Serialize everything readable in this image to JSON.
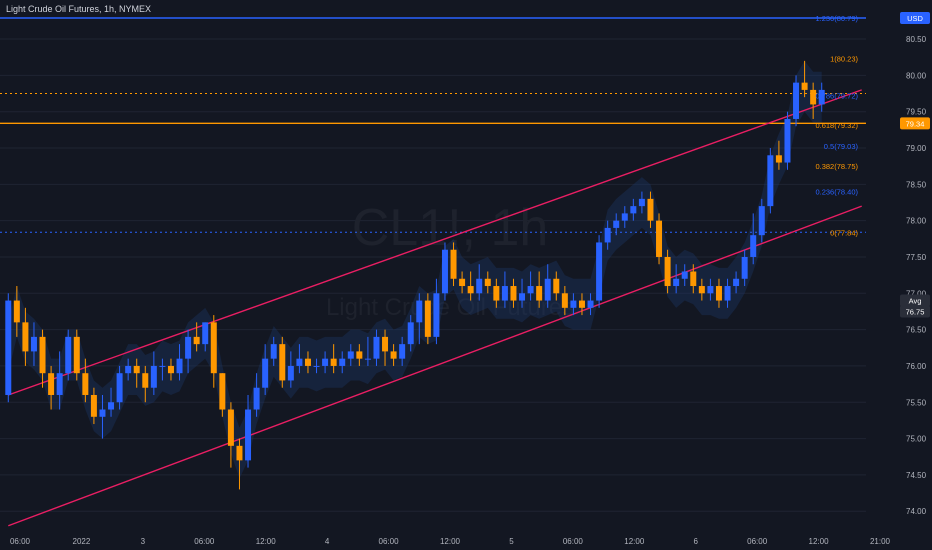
{
  "header": {
    "title": "Light Crude Oil Futures, 1h, NYMEX",
    "currency": "USD"
  },
  "watermark": {
    "ticker": "CL1!, 1h",
    "name": "Light Crude Oil Futures"
  },
  "chart_data": {
    "type": "candlestick",
    "symbol": "CL1!",
    "interval": "1h",
    "exchange": "NYMEX",
    "ylim": [
      73.7,
      80.9
    ],
    "y_ticks": [
      74.0,
      74.5,
      75.0,
      75.5,
      76.0,
      76.5,
      77.0,
      77.5,
      78.0,
      78.5,
      79.0,
      79.5,
      80.0,
      80.5
    ],
    "x_ticks": [
      "06:00",
      "2022",
      "3",
      "06:00",
      "12:00",
      "4",
      "06:00",
      "12:00",
      "5",
      "06:00",
      "12:00",
      "6",
      "06:00",
      "12:00",
      "21:00"
    ],
    "candles": [
      [
        75.6,
        76.9,
        77.0,
        75.5
      ],
      [
        76.9,
        76.6,
        77.1,
        76.4
      ],
      [
        76.6,
        76.2,
        76.8,
        76.0
      ],
      [
        76.2,
        76.4,
        76.6,
        76.0
      ],
      [
        76.4,
        75.9,
        76.5,
        75.7
      ],
      [
        75.9,
        75.6,
        76.0,
        75.4
      ],
      [
        75.6,
        75.9,
        76.2,
        75.4
      ],
      [
        75.9,
        76.4,
        76.5,
        75.8
      ],
      [
        76.4,
        75.9,
        76.5,
        75.8
      ],
      [
        75.9,
        75.6,
        76.1,
        75.5
      ],
      [
        75.6,
        75.3,
        75.7,
        75.2
      ],
      [
        75.3,
        75.4,
        75.6,
        75.0
      ],
      [
        75.4,
        75.5,
        75.7,
        75.3
      ],
      [
        75.5,
        75.9,
        76.0,
        75.4
      ],
      [
        75.9,
        76.0,
        76.1,
        75.8
      ],
      [
        76.0,
        75.9,
        76.1,
        75.7
      ],
      [
        75.9,
        75.7,
        76.0,
        75.5
      ],
      [
        75.7,
        76.0,
        76.2,
        75.6
      ],
      [
        76.0,
        76.0,
        76.1,
        75.8
      ],
      [
        76.0,
        75.9,
        76.1,
        75.8
      ],
      [
        75.9,
        76.1,
        76.3,
        75.8
      ],
      [
        76.1,
        76.4,
        76.5,
        75.9
      ],
      [
        76.4,
        76.3,
        76.6,
        76.2
      ],
      [
        76.3,
        76.6,
        76.6,
        76.2
      ],
      [
        76.6,
        75.9,
        76.7,
        75.7
      ],
      [
        75.9,
        75.4,
        75.9,
        75.3
      ],
      [
        75.4,
        74.9,
        75.5,
        74.6
      ],
      [
        74.9,
        74.7,
        75.0,
        74.3
      ],
      [
        74.7,
        75.4,
        75.6,
        74.6
      ],
      [
        75.4,
        75.7,
        75.9,
        75.3
      ],
      [
        75.7,
        76.1,
        76.3,
        75.6
      ],
      [
        76.1,
        76.3,
        76.4,
        76.0
      ],
      [
        76.3,
        75.8,
        76.4,
        75.7
      ],
      [
        75.8,
        76.0,
        76.2,
        75.7
      ],
      [
        76.0,
        76.1,
        76.3,
        75.9
      ],
      [
        76.1,
        76.0,
        76.2,
        75.9
      ],
      [
        76.0,
        76.0,
        76.1,
        75.9
      ],
      [
        76.0,
        76.1,
        76.2,
        75.9
      ],
      [
        76.1,
        76.0,
        76.3,
        75.9
      ],
      [
        76.0,
        76.1,
        76.2,
        75.9
      ],
      [
        76.1,
        76.2,
        76.3,
        76.0
      ],
      [
        76.2,
        76.1,
        76.3,
        76.0
      ],
      [
        76.1,
        76.1,
        76.4,
        76.0
      ],
      [
        76.1,
        76.4,
        76.5,
        76.0
      ],
      [
        76.4,
        76.2,
        76.5,
        76.0
      ],
      [
        76.2,
        76.1,
        76.3,
        76.0
      ],
      [
        76.1,
        76.3,
        76.4,
        76.0
      ],
      [
        76.3,
        76.6,
        76.7,
        76.2
      ],
      [
        76.6,
        76.9,
        77.0,
        76.3
      ],
      [
        76.9,
        76.4,
        77.0,
        76.3
      ],
      [
        76.4,
        77.0,
        77.2,
        76.3
      ],
      [
        77.0,
        77.6,
        77.7,
        76.9
      ],
      [
        77.6,
        77.2,
        77.7,
        77.1
      ],
      [
        77.2,
        77.1,
        77.3,
        77.0
      ],
      [
        77.1,
        77.0,
        77.3,
        76.9
      ],
      [
        77.0,
        77.2,
        77.4,
        76.9
      ],
      [
        77.2,
        77.1,
        77.3,
        77.0
      ],
      [
        77.1,
        76.9,
        77.2,
        76.8
      ],
      [
        76.9,
        77.1,
        77.3,
        76.8
      ],
      [
        77.1,
        76.9,
        77.2,
        76.8
      ],
      [
        76.9,
        77.0,
        77.2,
        76.8
      ],
      [
        77.0,
        77.1,
        77.3,
        76.9
      ],
      [
        77.1,
        76.9,
        77.3,
        76.8
      ],
      [
        76.9,
        77.2,
        77.4,
        76.8
      ],
      [
        77.2,
        77.0,
        77.3,
        76.9
      ],
      [
        77.0,
        76.8,
        77.1,
        76.7
      ],
      [
        76.8,
        76.9,
        77.0,
        76.7
      ],
      [
        76.9,
        76.8,
        77.0,
        76.7
      ],
      [
        76.8,
        76.9,
        77.0,
        76.7
      ],
      [
        76.9,
        77.7,
        77.8,
        76.8
      ],
      [
        77.7,
        77.9,
        78.0,
        77.6
      ],
      [
        77.9,
        78.0,
        78.1,
        77.8
      ],
      [
        78.0,
        78.1,
        78.2,
        77.9
      ],
      [
        78.1,
        78.2,
        78.3,
        78.0
      ],
      [
        78.2,
        78.3,
        78.4,
        78.1
      ],
      [
        78.3,
        78.0,
        78.4,
        77.9
      ],
      [
        78.0,
        77.5,
        78.1,
        77.4
      ],
      [
        77.5,
        77.1,
        77.6,
        77.0
      ],
      [
        77.1,
        77.2,
        77.4,
        77.0
      ],
      [
        77.2,
        77.3,
        77.4,
        77.1
      ],
      [
        77.3,
        77.1,
        77.4,
        77.0
      ],
      [
        77.1,
        77.0,
        77.2,
        76.9
      ],
      [
        77.0,
        77.1,
        77.2,
        76.9
      ],
      [
        77.1,
        76.9,
        77.2,
        76.8
      ],
      [
        76.9,
        77.1,
        77.2,
        76.8
      ],
      [
        77.1,
        77.2,
        77.3,
        77.0
      ],
      [
        77.2,
        77.5,
        77.6,
        77.1
      ],
      [
        77.5,
        77.8,
        78.1,
        77.4
      ],
      [
        77.8,
        78.2,
        78.3,
        77.7
      ],
      [
        78.2,
        78.9,
        79.0,
        78.1
      ],
      [
        78.9,
        78.8,
        79.1,
        78.7
      ],
      [
        78.8,
        79.4,
        79.5,
        78.7
      ],
      [
        79.4,
        79.9,
        80.0,
        79.3
      ],
      [
        79.9,
        79.8,
        80.2,
        79.7
      ],
      [
        79.8,
        79.6,
        79.9,
        79.4
      ],
      [
        79.6,
        79.8,
        79.9,
        79.5
      ]
    ],
    "price_labels": [
      {
        "label": "USD",
        "value": 80.79
      },
      {
        "label": "79.34",
        "value": 79.34
      },
      {
        "label": "Avg",
        "value": 76.9
      },
      {
        "label": "76.75",
        "value": 76.75
      }
    ],
    "fibonacci": [
      {
        "label": "1.236(80.79)",
        "value": 80.79,
        "color": "#2962ff"
      },
      {
        "label": "1(80.23)",
        "value": 80.23,
        "color": "#ff9800"
      },
      {
        "label": "0.786(79.72)",
        "value": 79.72,
        "color": "#2962ff"
      },
      {
        "label": "0.618(79.32)",
        "value": 79.32,
        "color": "#ff9800"
      },
      {
        "label": "0.5(79.03)",
        "value": 79.03,
        "color": "#2962ff"
      },
      {
        "label": "0.382(78.75)",
        "value": 78.75,
        "color": "#ff9800"
      },
      {
        "label": "0.236(78.40)",
        "value": 78.4,
        "color": "#2962ff"
      },
      {
        "label": "0(77.84)",
        "value": 77.84,
        "color": "#ff9800"
      }
    ],
    "horizontal_lines": [
      {
        "value": 80.79,
        "color": "#2962ff",
        "style": "solid"
      },
      {
        "value": 79.34,
        "color": "#ff9800",
        "style": "solid"
      },
      {
        "value": 79.75,
        "color": "#ff9800",
        "style": "dotted"
      },
      {
        "value": 77.84,
        "color": "#2962ff",
        "style": "dotted"
      }
    ],
    "channel": {
      "color": "#e91e63",
      "upper": [
        [
          0,
          75.6
        ],
        [
          96,
          79.8
        ]
      ],
      "lower": [
        [
          0,
          73.8
        ],
        [
          96,
          78.2
        ]
      ]
    },
    "colors": {
      "up": "#2962ff",
      "down": "#ff9800",
      "background": "#131722",
      "text": "#b2b5be"
    }
  }
}
